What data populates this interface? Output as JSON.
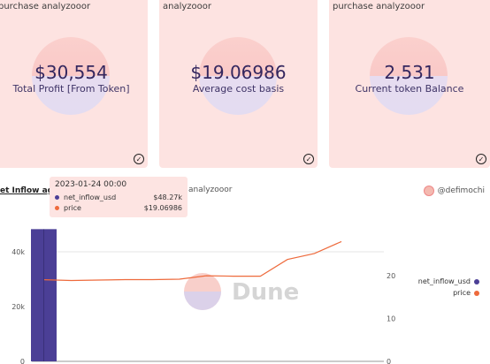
{
  "cards": [
    {
      "subtitle": "purchase analyzooor",
      "value": "$30,554",
      "label": "Total Profit [From Token]"
    },
    {
      "subtitle": "analyzooor",
      "value": "$19.06986",
      "label": "Average cost basis"
    },
    {
      "subtitle": "purchase analyzooor",
      "value": "2,531",
      "label": "Current token Balance"
    }
  ],
  "chart_panel": {
    "title": "et Inflow agai",
    "subtitle": "analyzooor",
    "author": "@defimochi",
    "watermark": "Dune"
  },
  "tooltip": {
    "date": "2023-01-24 00:00",
    "rows": [
      {
        "name": "net_inflow_usd",
        "value": "$48.27k",
        "color": "#4b3f96"
      },
      {
        "name": "price",
        "value": "$19.06986",
        "color": "#ee6a3c"
      }
    ]
  },
  "chart_data": {
    "type": "bar+line",
    "series": [
      {
        "name": "net_inflow_usd",
        "type": "bar",
        "axis": "left",
        "color": "#4b3f96",
        "values": [
          48270,
          null,
          null,
          null,
          null,
          null,
          null,
          null,
          null,
          null,
          null,
          null
        ]
      },
      {
        "name": "price",
        "type": "line",
        "axis": "right",
        "color": "#ee6a3c",
        "values": [
          19.07,
          18.9,
          19.0,
          19.1,
          19.1,
          19.2,
          20.0,
          19.9,
          19.9,
          23.8,
          25.2,
          28.0
        ]
      }
    ],
    "left_axis": {
      "ticks": [
        "0",
        "20k",
        "40k"
      ],
      "ylim": [
        0,
        50000
      ]
    },
    "right_axis": {
      "ticks": [
        "0",
        "10",
        "20"
      ],
      "ylim": [
        0,
        32
      ]
    },
    "legend": [
      "net_inflow_usd",
      "price"
    ],
    "legend_position": "right"
  }
}
